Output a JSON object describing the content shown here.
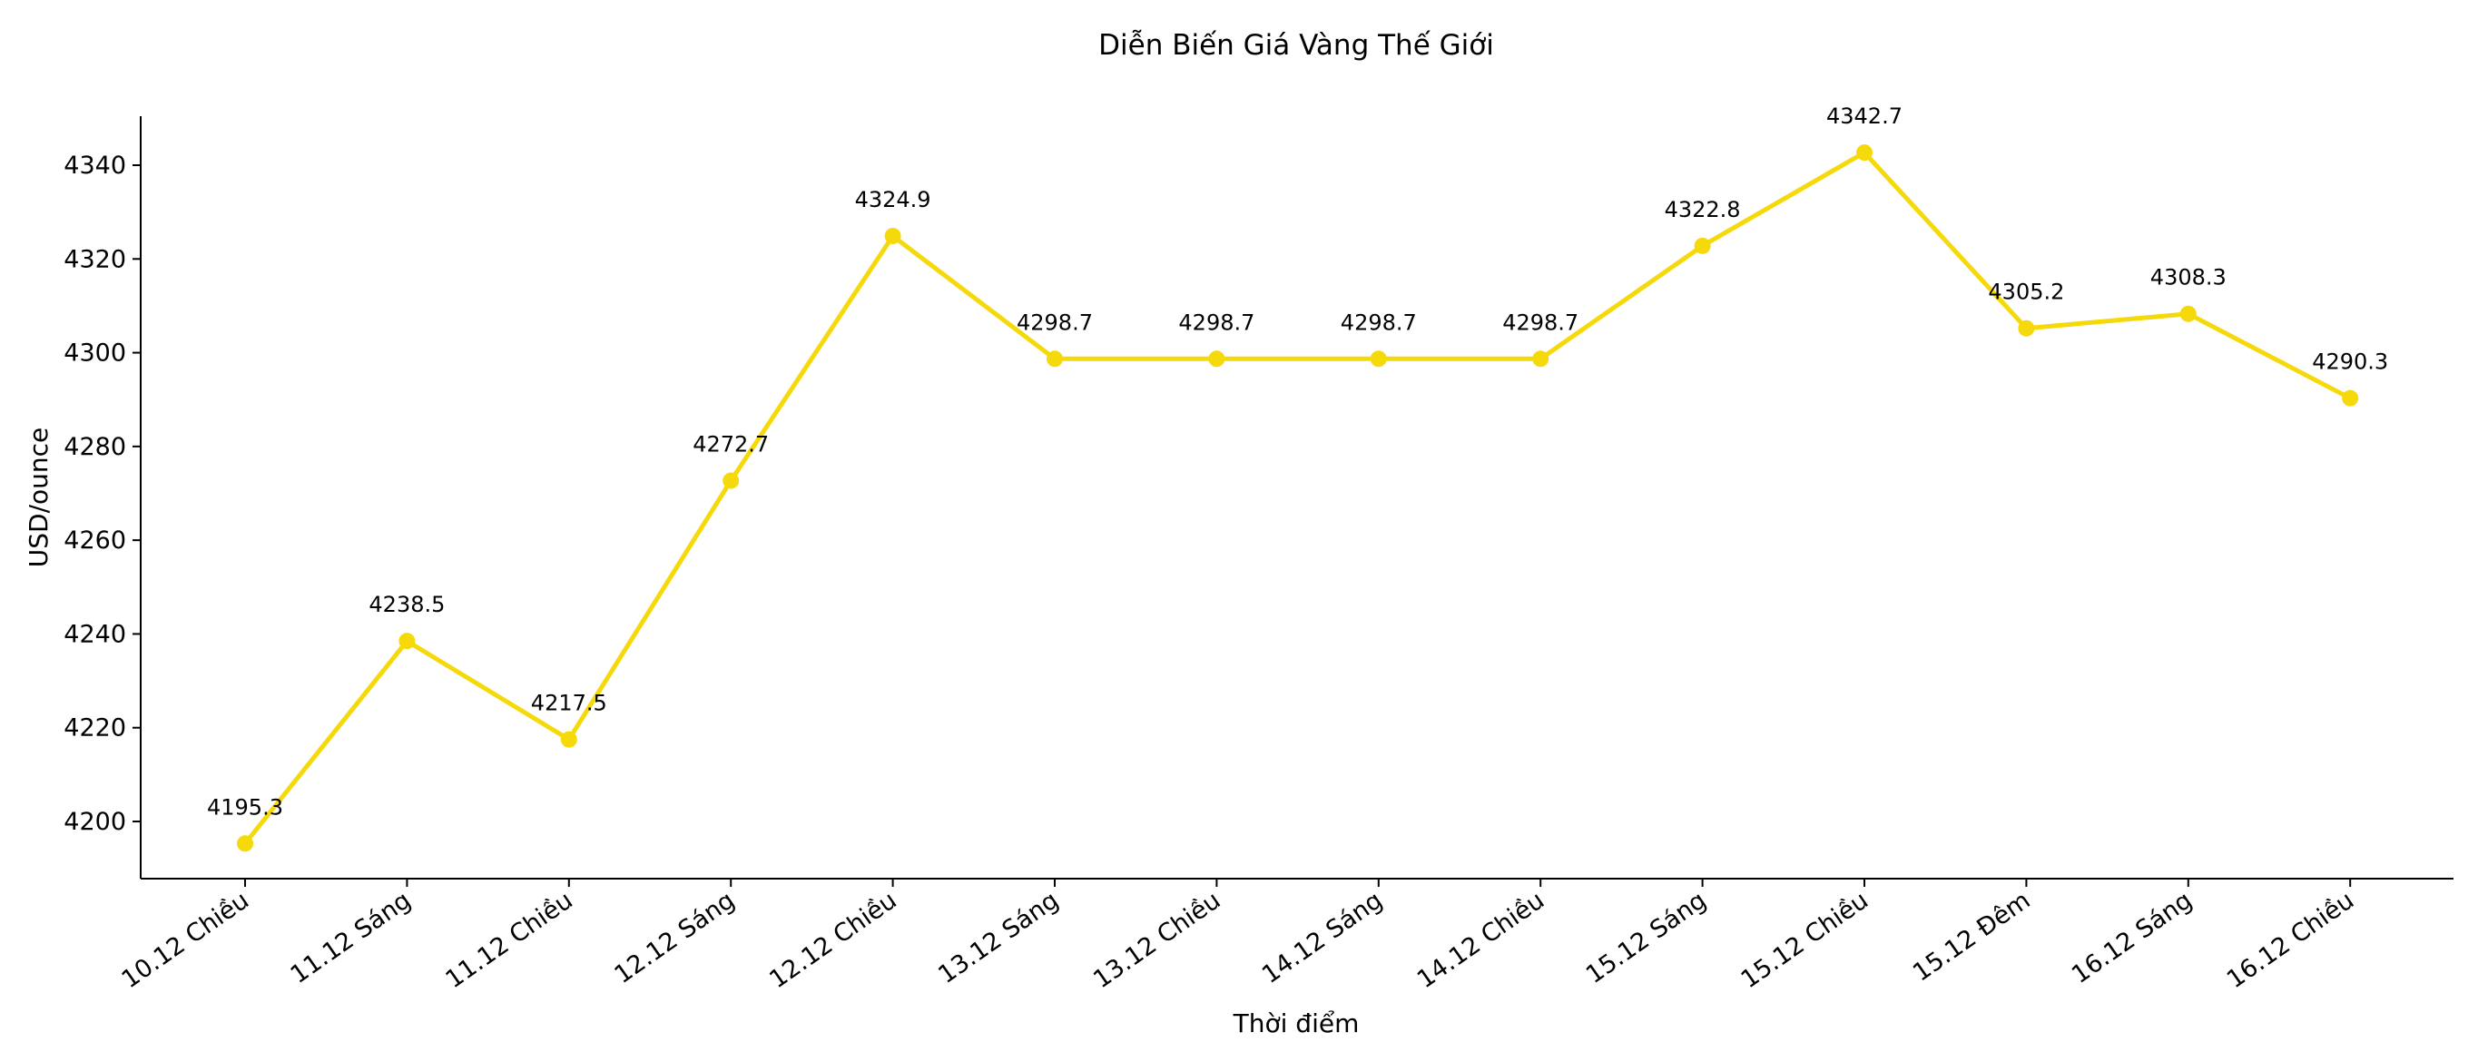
{
  "chart_data": {
    "type": "line",
    "title": "Diễn Biến Giá Vàng Thế Giới",
    "xlabel": "Thời điểm",
    "ylabel": "USD/ounce",
    "categories": [
      "10.12 Chiều",
      "11.12 Sáng",
      "11.12 Chiều",
      "12.12 Sáng",
      "12.12 Chiều",
      "13.12 Sáng",
      "13.12 Chiều",
      "14.12 Sáng",
      "14.12 Chiều",
      "15.12 Sáng",
      "15.12 Chiều",
      "15.12 Đêm",
      "16.12 Sáng",
      "16.12 Chiều"
    ],
    "series": [
      {
        "values": [
          4195.3,
          4238.5,
          4217.5,
          4272.7,
          4324.9,
          4298.7,
          4298.7,
          4298.7,
          4298.7,
          4322.8,
          4342.7,
          4305.2,
          4308.3,
          4290.3
        ]
      }
    ],
    "data_labels": [
      "4195.3",
      "4238.5",
      "4217.5",
      "4272.7",
      "4324.9",
      "4298.7",
      "4298.7",
      "4298.7",
      "4298.7",
      "4322.8",
      "4342.7",
      "4305.2",
      "4308.3",
      "4290.3"
    ],
    "yticks": [
      4200,
      4220,
      4240,
      4260,
      4280,
      4300,
      4320,
      4340
    ],
    "ytick_labels": [
      "4200",
      "4220",
      "4240",
      "4260",
      "4280",
      "4300",
      "4320",
      "4340"
    ],
    "ylim": [
      4188,
      4350.5
    ],
    "grid": false,
    "color": "#F5D90A"
  }
}
